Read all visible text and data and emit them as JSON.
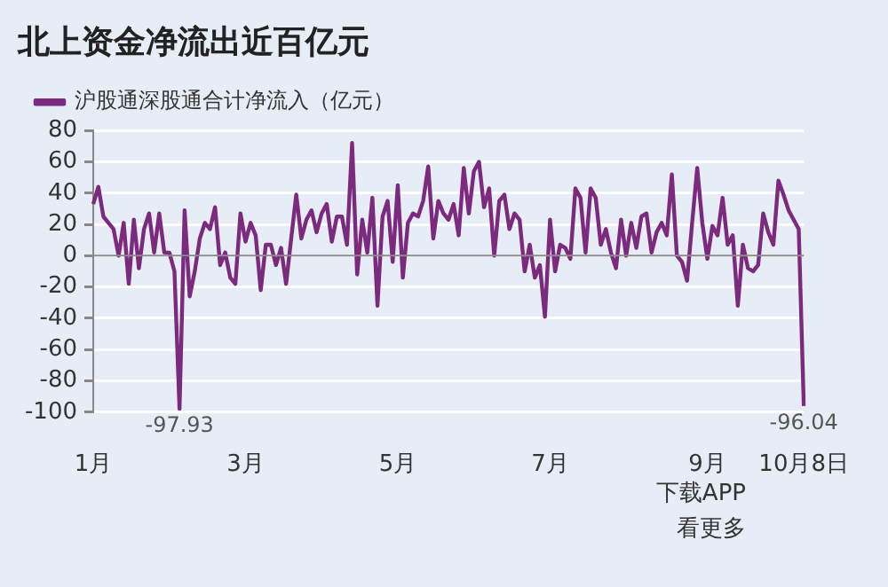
{
  "chart_data": {
    "type": "line",
    "title": "北上资金净流出近百亿元",
    "categories": [
      "1月",
      null,
      null,
      null,
      null,
      null,
      null,
      null,
      null,
      null,
      null,
      null,
      null,
      null,
      null,
      null,
      null,
      null,
      null,
      null,
      null,
      null,
      null,
      null,
      null,
      null,
      null,
      null,
      null,
      null,
      "3月",
      null,
      null,
      null,
      null,
      null,
      null,
      null,
      null,
      null,
      null,
      null,
      null,
      null,
      null,
      null,
      null,
      null,
      null,
      null,
      null,
      null,
      null,
      null,
      null,
      null,
      null,
      null,
      null,
      null,
      "5月",
      null,
      null,
      null,
      null,
      null,
      null,
      null,
      null,
      null,
      null,
      null,
      null,
      null,
      null,
      null,
      null,
      null,
      null,
      null,
      null,
      null,
      null,
      null,
      null,
      null,
      null,
      null,
      null,
      null,
      "7月",
      null,
      null,
      null,
      null,
      null,
      null,
      null,
      null,
      null,
      null,
      null,
      null,
      null,
      null,
      null,
      null,
      null,
      null,
      null,
      null,
      null,
      null,
      null,
      null,
      null,
      null,
      null,
      null,
      null,
      null,
      "9月",
      null,
      null,
      null,
      null,
      null,
      null,
      null,
      null,
      null,
      null,
      null,
      null,
      null,
      null,
      null,
      null,
      null,
      null,
      "10月8日"
    ],
    "series": [
      {
        "name": "沪股通深股通合计净流入（亿元）",
        "color": "#7b2a7e",
        "values": [
          33,
          44,
          25,
          21,
          17,
          0,
          21,
          -18,
          23,
          -8,
          17,
          27,
          2,
          27,
          2,
          2,
          -10,
          -97.93,
          29,
          -26,
          -10,
          11,
          21,
          17,
          31,
          -6,
          2,
          -14,
          -18,
          27,
          9,
          21,
          13,
          -22,
          7,
          7,
          -6,
          5,
          -18,
          11,
          39,
          11,
          23,
          29,
          15,
          27,
          33,
          9,
          25,
          25,
          7,
          72,
          -12,
          23,
          2,
          37,
          -32,
          25,
          35,
          -4,
          45,
          -14,
          21,
          27,
          25,
          35,
          57,
          11,
          35,
          27,
          23,
          33,
          13,
          56,
          27,
          54,
          60,
          31,
          43,
          0,
          35,
          39,
          17,
          27,
          23,
          -10,
          7,
          -14,
          -6,
          -39,
          23,
          -10,
          7,
          5,
          -2,
          43,
          37,
          2,
          43,
          37,
          7,
          17,
          2,
          -8,
          23,
          0,
          21,
          5,
          25,
          27,
          2,
          15,
          21,
          13,
          52,
          0,
          -4,
          -16,
          21,
          56,
          21,
          -2,
          19,
          13,
          37,
          7,
          13,
          -32,
          7,
          -8,
          -10,
          -6,
          27,
          15,
          7,
          48,
          39,
          29,
          23,
          17,
          -96.04
        ]
      }
    ],
    "ylim": [
      -100,
      80
    ],
    "yticks": [
      -100,
      -80,
      -60,
      -40,
      -20,
      0,
      20,
      40,
      60,
      80
    ],
    "grid": "y",
    "legend": "top left",
    "marker": "none",
    "line_style": "solid",
    "ref_lines": [
      {
        "axis": "y",
        "value": 0,
        "color": "#8a8a8a"
      }
    ],
    "annotations": [
      {
        "text": "-97.93",
        "y": -97.93
      },
      {
        "text": "-96.04",
        "y": -96.04
      },
      "下载APP",
      "看更多"
    ]
  }
}
